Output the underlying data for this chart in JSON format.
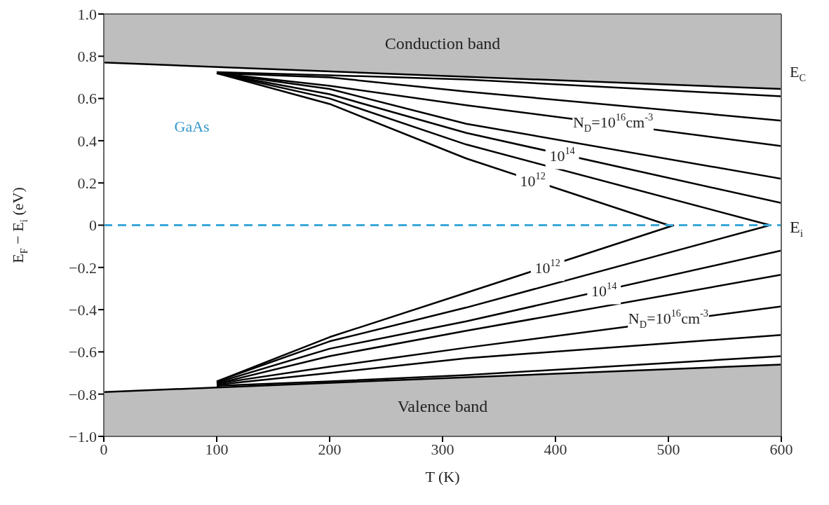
{
  "chart_data": {
    "type": "line",
    "title": "GaAs",
    "xlabel": "T (K)",
    "ylabel": "E$_{F}$ − E$_{i}$ (eV)",
    "xlim": [
      0,
      600
    ],
    "xticks": [
      0,
      100,
      200,
      300,
      400,
      500,
      600
    ],
    "ylim": [
      -1,
      1
    ],
    "yticks": [
      {
        "value": -1,
        "label": "−1.0"
      },
      {
        "value": -0.8,
        "label": "−0.8"
      },
      {
        "value": -0.6,
        "label": "−0.6"
      },
      {
        "value": -0.4,
        "label": "−0.4"
      },
      {
        "value": -0.2,
        "label": "−0.2"
      },
      {
        "value": 0,
        "label": "0"
      },
      {
        "value": 0.2,
        "label": "0.2"
      },
      {
        "value": 0.4,
        "label": "0.4"
      },
      {
        "value": 0.6,
        "label": "0.6"
      },
      {
        "value": 0.8,
        "label": "0.8"
      },
      {
        "value": 1,
        "label": "1.0"
      }
    ],
    "line_style": "solid",
    "marker": "none",
    "series": [
      {
        "name": "Conduction band",
        "color": "#000000",
        "x": [
          0,
          600
        ],
        "values": [
          0.77,
          0.645
        ],
        "lower": [
          0.77,
          0.645
        ],
        "upper": [
          1,
          1
        ]
      },
      {
        "name": "Valence band",
        "color": "#000000",
        "x": [
          0,
          600
        ],
        "values": [
          -0.79,
          -0.66
        ],
        "lower": [
          -1,
          -1
        ],
        "upper": [
          -0.79,
          -0.66
        ]
      },
      {
        "color": "#000000",
        "x": [
          100,
          200,
          321,
          500
        ],
        "values": [
          0.72,
          0.574,
          0.316,
          0
        ]
      },
      {
        "color": "#000000",
        "x": [
          100,
          200,
          321,
          590
        ],
        "values": [
          0.72,
          0.6,
          0.382,
          0
        ]
      },
      {
        "color": "#000000",
        "x": [
          100,
          200,
          321,
          600
        ],
        "values": [
          0.72,
          0.62,
          0.437,
          0.105
        ]
      },
      {
        "color": "#000000",
        "x": [
          100,
          200,
          321,
          600
        ],
        "values": [
          0.72,
          0.645,
          0.48,
          0.22
        ]
      },
      {
        "color": "#000000",
        "x": [
          100,
          200,
          321,
          600
        ],
        "values": [
          0.72,
          0.66,
          0.568,
          0.375
        ]
      },
      {
        "color": "#000000",
        "x": [
          100,
          200,
          321,
          600
        ],
        "values": [
          0.72,
          0.7,
          0.633,
          0.495
        ]
      },
      {
        "color": "#000000",
        "x": [
          100,
          200,
          321,
          600
        ],
        "values": [
          0.725,
          0.71,
          0.69,
          0.61
        ]
      },
      {
        "color": "#000000",
        "x": [
          100,
          200,
          321,
          505
        ],
        "values": [
          -0.74,
          -0.53,
          -0.32,
          0
        ]
      },
      {
        "color": "#000000",
        "x": [
          100,
          200,
          321,
          590
        ],
        "values": [
          -0.74,
          -0.55,
          -0.39,
          0
        ]
      },
      {
        "color": "#000000",
        "x": [
          100,
          200,
          321,
          600
        ],
        "values": [
          -0.745,
          -0.585,
          -0.455,
          -0.12
        ]
      },
      {
        "color": "#000000",
        "x": [
          100,
          200,
          321,
          600
        ],
        "values": [
          -0.75,
          -0.62,
          -0.5,
          -0.235
        ]
      },
      {
        "color": "#000000",
        "x": [
          100,
          200,
          321,
          600
        ],
        "values": [
          -0.75,
          -0.67,
          -0.58,
          -0.385
        ]
      },
      {
        "color": "#000000",
        "x": [
          100,
          200,
          321,
          600
        ],
        "values": [
          -0.755,
          -0.7,
          -0.63,
          -0.52
        ]
      },
      {
        "color": "#000000",
        "x": [
          100,
          200,
          321,
          600
        ],
        "values": [
          -0.76,
          -0.74,
          -0.71,
          -0.62
        ]
      }
    ],
    "ref_lines": [
      {
        "axis": "y",
        "value": 0,
        "label": "E$_{i}$",
        "color": "#3aa8d8",
        "line_style": "dashed"
      }
    ],
    "annotations": [
      "E$_{C}$",
      {
        "text": "N$_{D}$=10$^{16}$cm$^{-3}$",
        "x": 451,
        "y": 0.48
      },
      {
        "text": "10$^{14}$",
        "x": 406,
        "y": 0.32
      },
      {
        "text": "10$^{12}$",
        "x": 380,
        "y": 0.2
      },
      {
        "text": "10$^{12}$",
        "x": 393,
        "y": -0.21
      },
      {
        "text": "10$^{14}$",
        "x": 443,
        "y": -0.32
      },
      {
        "text": "N$_{D}$=10$^{16}$cm$^{-3}$",
        "x": 500,
        "y": -0.45
      }
    ]
  }
}
